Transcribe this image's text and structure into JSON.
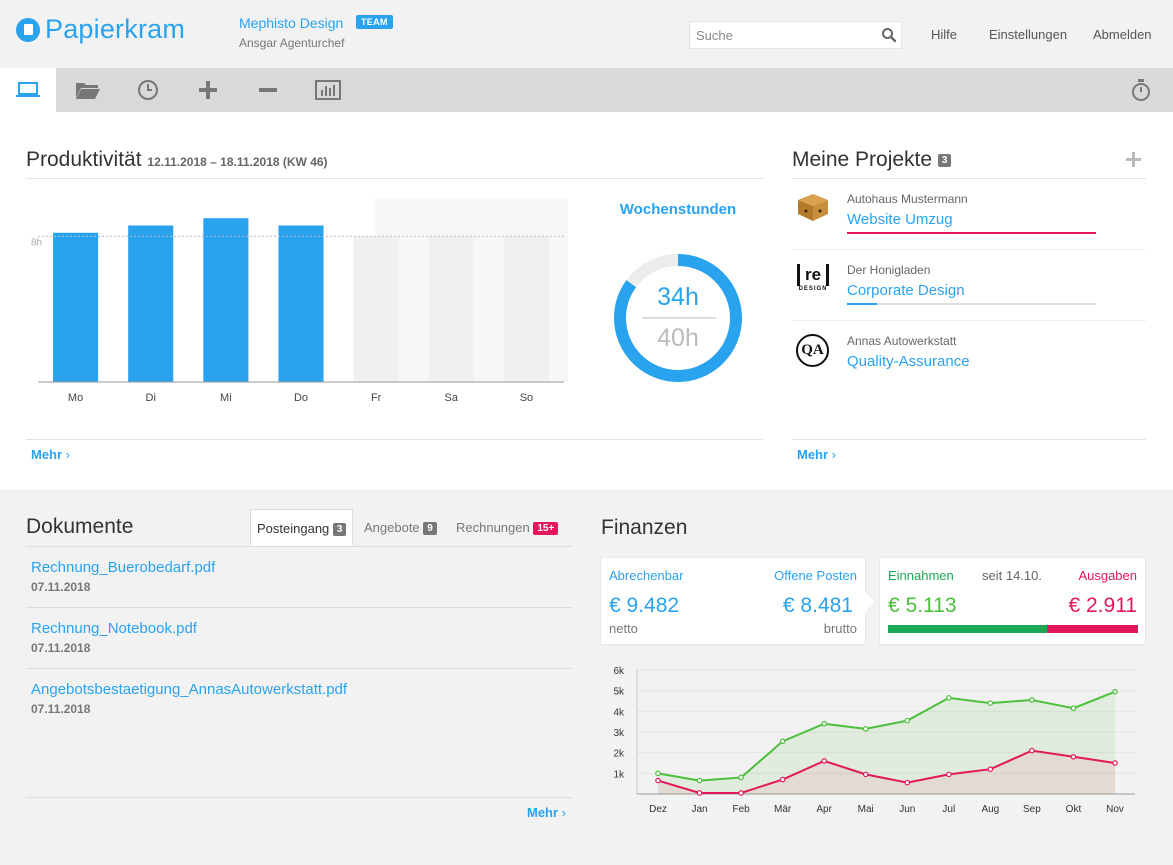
{
  "header": {
    "app_name": "Papierkram",
    "company": "Mephisto Design",
    "team_badge": "TEAM",
    "user": "Ansgar Agenturchef",
    "search_placeholder": "Suche",
    "links": [
      "Hilfe",
      "Einstellungen",
      "Abmelden"
    ]
  },
  "toolbar": {
    "icons": [
      "laptop-icon",
      "folder-icon",
      "clock-icon",
      "plus-icon",
      "minus-icon",
      "bar-chart-icon",
      "stopwatch-icon"
    ],
    "active_index": 0
  },
  "productivity": {
    "title": "Produktivität",
    "date_range": "12.11.2018 – 18.11.2018 (KW 46)",
    "ref_label": "8h",
    "more": "Mehr",
    "weekly_title": "Wochenstunden",
    "weekly_actual": "34h",
    "weekly_target": "40h",
    "weekly_progress": 0.85
  },
  "chart_data": [
    {
      "type": "bar",
      "categories": [
        "Mo",
        "Di",
        "Mi",
        "Do",
        "Fr",
        "Sa",
        "So"
      ],
      "values": [
        8.2,
        8.6,
        9.0,
        8.6,
        0,
        0,
        0
      ],
      "target_line": 8,
      "ylim": [
        0,
        10
      ],
      "colors": {
        "filled": "#2aa3ef",
        "empty": "#f0f0f0"
      },
      "title": "",
      "xlabel": "",
      "ylabel": ""
    },
    {
      "type": "line",
      "categories": [
        "Dez",
        "Jan",
        "Feb",
        "Mär",
        "Apr",
        "Mai",
        "Jun",
        "Jul",
        "Aug",
        "Sep",
        "Okt",
        "Nov"
      ],
      "yticks": [
        "1k",
        "2k",
        "3k",
        "4k",
        "5k",
        "6k"
      ],
      "ylim": [
        0,
        6000
      ],
      "series": [
        {
          "values": [
            1000,
            650,
            800,
            2550,
            3400,
            3150,
            3550,
            4650,
            4400,
            4550,
            4150,
            4950
          ],
          "color": "#4cbf3c"
        },
        {
          "values": [
            650,
            50,
            50,
            700,
            1600,
            950,
            550,
            950,
            1200,
            2100,
            1800,
            1500
          ],
          "color": "#e3185a"
        }
      ],
      "grid": true
    }
  ],
  "projects": {
    "title": "Meine Projekte",
    "count": "3",
    "more": "Mehr",
    "items": [
      {
        "client": "Autohaus Mustermann",
        "name": "Website Umzug",
        "progress": 1.0,
        "color": "#e3185a"
      },
      {
        "client": "Der Honigladen",
        "name": "Corporate Design",
        "progress": 0.12,
        "color": "#2aa3ef"
      },
      {
        "client": "Annas Autowerkstatt",
        "name": "Quality-Assurance",
        "progress": 0,
        "color": "#2aa3ef"
      }
    ],
    "logo_texts": [
      "re",
      "DESIGN",
      "QA"
    ]
  },
  "documents": {
    "title": "Dokumente",
    "tabs": [
      {
        "label": "Posteingang",
        "count": "3"
      },
      {
        "label": "Angebote",
        "count": "9"
      },
      {
        "label": "Rechnungen",
        "count": "15+"
      }
    ],
    "items": [
      {
        "name": "Rechnung_Buerobedarf.pdf",
        "date": "07.11.2018"
      },
      {
        "name": "Rechnung_Notebook.pdf",
        "date": "07.11.2018"
      },
      {
        "name": "Angebotsbestaetigung_AnnasAutowerkstatt.pdf",
        "date": "07.11.2018"
      }
    ],
    "more": "Mehr"
  },
  "finances": {
    "title": "Finanzen",
    "billable_label": "Abrechenbar",
    "billable_value": "€ 9.482",
    "billable_sub": "netto",
    "open_label": "Offene Posten",
    "open_value": "€ 8.481",
    "open_sub": "brutto",
    "income_label": "Einnahmen",
    "since_label": "seit 14.10.",
    "expense_label": "Ausgaben",
    "income_value": "€ 5.113",
    "expense_value": "€ 2.911",
    "income_share": 0.637,
    "colors": {
      "income": "#1aaa55",
      "expense": "#e3185a"
    }
  }
}
